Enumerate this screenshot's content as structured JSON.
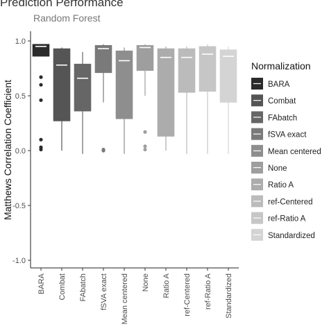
{
  "chart_data": {
    "type": "box",
    "title": "Prediction Performance",
    "subtitle": "Random Forest",
    "xlabel": "",
    "ylabel": "Matthews Correlation Coefficient",
    "ylim": [
      -1.0,
      1.0
    ],
    "yticks": [
      -1.0,
      -0.5,
      0.0,
      0.5,
      1.0
    ],
    "ytick_labels": [
      "-1.0",
      "-0.5",
      "0.0",
      "0.5",
      "1.0"
    ],
    "grid": false,
    "legend": {
      "title": "Normalization",
      "position": "right"
    },
    "categories": [
      "BARA",
      "Combat",
      "FAbatch",
      "fSVA exact",
      "Mean centered",
      "None",
      "Ratio A",
      "ref-Centered",
      "ref-Ratio A",
      "Standardized"
    ],
    "series": [
      {
        "name": "BARA",
        "color": "#2b2b2b",
        "whisker_low": 0.86,
        "q1": 0.86,
        "median": 0.95,
        "q3": 0.97,
        "whisker_high": 0.97,
        "outliers": [
          0.67,
          0.6,
          0.46,
          0.1,
          0.03,
          0.01
        ]
      },
      {
        "name": "Combat",
        "color": "#555555",
        "whisker_low": 0.0,
        "q1": 0.27,
        "median": 0.78,
        "q3": 0.93,
        "whisker_high": 0.94,
        "outliers": []
      },
      {
        "name": "FAbatch",
        "color": "#666666",
        "whisker_low": -0.03,
        "q1": 0.36,
        "median": 0.66,
        "q3": 0.79,
        "whisker_high": 0.9,
        "outliers": []
      },
      {
        "name": "fSVA exact",
        "color": "#7a7a7a",
        "whisker_low": 0.44,
        "q1": 0.71,
        "median": 0.93,
        "q3": 0.96,
        "whisker_high": 0.97,
        "outliers": [
          0.01,
          0.0
        ]
      },
      {
        "name": "Mean centered",
        "color": "#8e8e8e",
        "whisker_low": -0.03,
        "q1": 0.29,
        "median": 0.82,
        "q3": 0.91,
        "whisker_high": 0.94,
        "outliers": []
      },
      {
        "name": "None",
        "color": "#9e9e9e",
        "whisker_low": 0.5,
        "q1": 0.73,
        "median": 0.94,
        "q3": 0.96,
        "whisker_high": 0.97,
        "outliers": [
          0.17,
          0.04,
          0.01
        ]
      },
      {
        "name": "Ratio A",
        "color": "#acacac",
        "whisker_low": 0.0,
        "q1": 0.13,
        "median": 0.85,
        "q3": 0.93,
        "whisker_high": 0.95,
        "outliers": []
      },
      {
        "name": "ref-Centered",
        "color": "#bbbbbb",
        "whisker_low": -0.03,
        "q1": 0.53,
        "median": 0.85,
        "q3": 0.93,
        "whisker_high": 0.95,
        "outliers": []
      },
      {
        "name": "ref-Ratio A",
        "color": "#c6c6c6",
        "whisker_low": -0.03,
        "q1": 0.54,
        "median": 0.88,
        "q3": 0.95,
        "whisker_high": 0.97,
        "outliers": []
      },
      {
        "name": "Standardized",
        "color": "#d4d4d4",
        "whisker_low": -0.03,
        "q1": 0.44,
        "median": 0.86,
        "q3": 0.92,
        "whisker_high": 0.95,
        "outliers": []
      }
    ]
  }
}
